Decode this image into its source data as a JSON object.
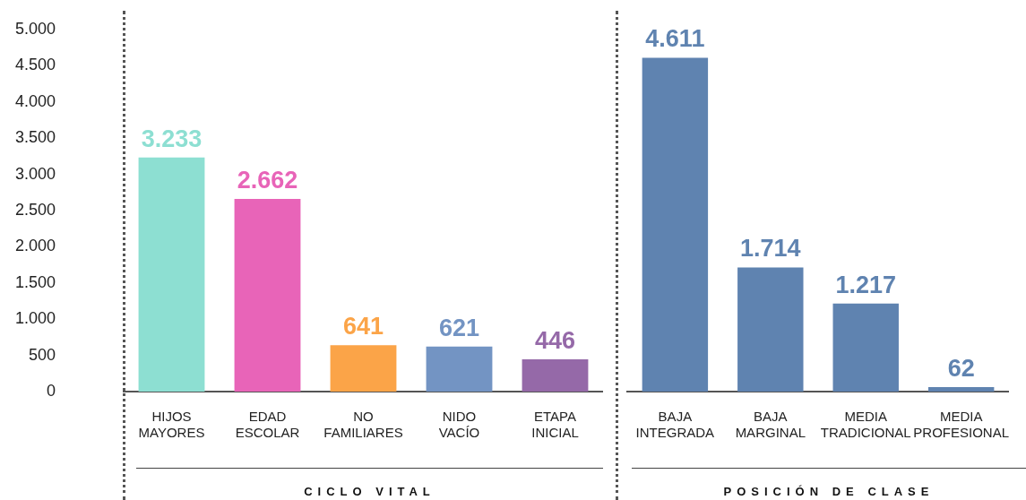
{
  "chart_data": [
    {
      "type": "bar",
      "xlabel": "CICLO VITAL",
      "categories": [
        "HIJOS MAYORES",
        "EDAD ESCOLAR",
        "NO FAMILIARES",
        "NIDO VACÍO",
        "ETAPA INICIAL"
      ],
      "values": [
        3233,
        2662,
        641,
        621,
        446
      ],
      "colors": [
        "#8ddfd2",
        "#e864b8",
        "#fba448",
        "#7394c3",
        "#9569a8"
      ],
      "value_labels": [
        "3.233",
        "2.662",
        "641",
        "621",
        "446"
      ],
      "ylim": [
        0,
        5000
      ],
      "yticks": [
        {
          "value": 0,
          "label": "0"
        },
        {
          "value": 500,
          "label": "500"
        },
        {
          "value": 1000,
          "label": "1.000"
        },
        {
          "value": 1500,
          "label": "1.500"
        },
        {
          "value": 2000,
          "label": "2.000"
        },
        {
          "value": 2500,
          "label": "2.500"
        },
        {
          "value": 3000,
          "label": "3.000"
        },
        {
          "value": 3500,
          "label": "3.500"
        },
        {
          "value": 4000,
          "label": "4.000"
        },
        {
          "value": 4500,
          "label": "4.500"
        },
        {
          "value": 5000,
          "label": "5.000"
        }
      ],
      "grid": false,
      "legend": false
    },
    {
      "type": "bar",
      "xlabel": "POSICIÓN DE CLASE",
      "categories": [
        "BAJA INTEGRADA",
        "BAJA MARGINAL",
        "MEDIA TRADICIONAL",
        "MEDIA PROFESIONAL"
      ],
      "values": [
        4611,
        1714,
        1217,
        62
      ],
      "color": "#5f83b0",
      "value_labels": [
        "4.611",
        "1.714",
        "1.217",
        "62"
      ],
      "ylim": [
        0,
        5000
      ],
      "tick_labels": "x",
      "grid": false,
      "legend": false
    }
  ]
}
